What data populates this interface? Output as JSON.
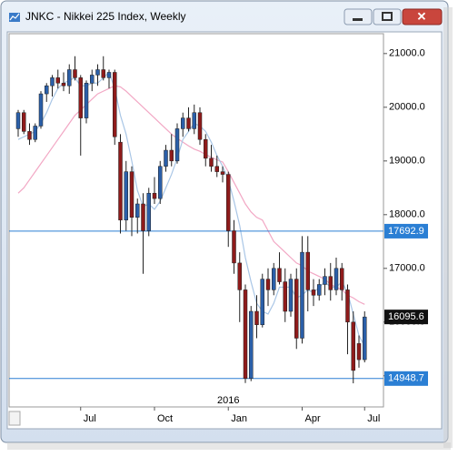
{
  "chart_data": {
    "type": "candlestick",
    "title": "JNKC - Nikkei 225 Index, Weekly",
    "categories": [
      null,
      null,
      null,
      null,
      null,
      null,
      null,
      null,
      null,
      null,
      null,
      "Jul",
      null,
      null,
      null,
      null,
      null,
      null,
      null,
      null,
      null,
      null,
      null,
      null,
      "Oct",
      null,
      null,
      null,
      null,
      null,
      null,
      null,
      null,
      null,
      null,
      null,
      null,
      "Jan",
      null,
      null,
      null,
      null,
      null,
      null,
      null,
      null,
      null,
      null,
      null,
      null,
      "Apr",
      null,
      null,
      null,
      null,
      null,
      null,
      null,
      null,
      null,
      null,
      "Jul"
    ],
    "annotation": "2016",
    "annotation_index": 37,
    "open": [
      19600,
      19900,
      19550,
      19400,
      19650,
      20250,
      20400,
      20550,
      20450,
      20400,
      20700,
      20550,
      19800,
      20450,
      20600,
      20700,
      20550,
      20650,
      19350,
      17900,
      18800,
      17950,
      18200,
      17700,
      18400,
      18300,
      18900,
      19200,
      19000,
      19600,
      19800,
      19600,
      19900,
      19400,
      19050,
      18900,
      18800,
      18750,
      17700,
      17100,
      16600,
      14950,
      16200,
      15950,
      16800,
      16600,
      17000,
      16750,
      16200,
      16800,
      15700,
      17300,
      16600,
      16500,
      16700,
      16850,
      16600,
      17000,
      16600,
      16000,
      15600,
      15300
    ],
    "high": [
      19950,
      19950,
      19700,
      19700,
      20300,
      20450,
      20600,
      20700,
      20650,
      20800,
      20950,
      20600,
      20500,
      20700,
      20800,
      20950,
      20700,
      20700,
      19500,
      19000,
      18900,
      18300,
      18400,
      18500,
      18700,
      19000,
      19300,
      19500,
      19700,
      19900,
      20000,
      20050,
      20000,
      19500,
      19300,
      19100,
      18900,
      18800,
      17900,
      17300,
      16700,
      16300,
      16500,
      16900,
      17000,
      17100,
      17300,
      17000,
      16900,
      17000,
      17600,
      17600,
      16800,
      16800,
      17000,
      17100,
      17200,
      17100,
      16700,
      16200,
      15750,
      16200
    ],
    "low": [
      19450,
      19500,
      19300,
      19350,
      19600,
      20100,
      20200,
      20350,
      20300,
      20250,
      20500,
      19100,
      19700,
      20300,
      20400,
      20500,
      20350,
      19300,
      17650,
      17700,
      17600,
      17650,
      16900,
      17600,
      18200,
      18200,
      18800,
      18900,
      18950,
      19450,
      19550,
      19500,
      19300,
      18900,
      18800,
      18700,
      18600,
      17400,
      16900,
      16000,
      14865,
      14900,
      15700,
      15900,
      16300,
      16500,
      16700,
      16000,
      16100,
      15500,
      15600,
      16200,
      16300,
      16400,
      16500,
      16400,
      16500,
      16400,
      15400,
      14860,
      15150,
      15250
    ],
    "close": [
      19900,
      19550,
      19400,
      19650,
      20250,
      20400,
      20550,
      20450,
      20400,
      20700,
      20550,
      19800,
      20450,
      20600,
      20700,
      20550,
      20650,
      19450,
      17900,
      18800,
      17950,
      18200,
      17700,
      18400,
      18300,
      18900,
      19200,
      19000,
      19600,
      19800,
      19600,
      19900,
      19400,
      19050,
      18900,
      18800,
      18750,
      17700,
      17100,
      16600,
      14950,
      16200,
      15950,
      16800,
      16600,
      17000,
      16750,
      16200,
      16800,
      15700,
      17300,
      16600,
      16500,
      16700,
      16850,
      16600,
      17000,
      16600,
      16000,
      15100,
      15300,
      16095.6
    ],
    "up_color": "#2b5fa8",
    "down_color": "#8e1b1b",
    "overlays": [
      {
        "color": "#f2a7c4",
        "values": [
          18400,
          18500,
          18650,
          18800,
          18950,
          19100,
          19250,
          19400,
          19550,
          19700,
          19850,
          19950,
          20050,
          20150,
          20250,
          20300,
          20350,
          20400,
          20380,
          20300,
          20200,
          20100,
          20000,
          19900,
          19800,
          19700,
          19600,
          19500,
          19420,
          19350,
          19280,
          19220,
          19180,
          19120,
          19070,
          19020,
          18980,
          18800,
          18600,
          18400,
          18200,
          18050,
          17950,
          17900,
          17700,
          17500,
          17400,
          17300,
          17200,
          17100,
          17050,
          16950,
          16900,
          16850,
          16800,
          16700,
          16650,
          16600,
          16500,
          16450,
          16380,
          16330
        ]
      },
      {
        "color": "#a9c6e6",
        "values": [
          19400,
          19450,
          19500,
          19550,
          19700,
          19900,
          20150,
          20350,
          20450,
          20500,
          20550,
          20400,
          20400,
          20450,
          20450,
          20550,
          20650,
          20350,
          19850,
          19500,
          19000,
          18450,
          18150,
          18200,
          18100,
          18250,
          18500,
          18750,
          19050,
          19400,
          19550,
          19700,
          19650,
          19550,
          19350,
          19100,
          18900,
          18650,
          18250,
          17800,
          17200,
          16750,
          16350,
          16200,
          16150,
          16350,
          16650,
          16650,
          16650,
          16450,
          16500,
          16600,
          16550,
          16650,
          16750,
          16650,
          16650,
          16750,
          16550,
          16150,
          15750,
          15550
        ]
      }
    ],
    "hlines": [
      {
        "value": 17692.9,
        "color": "#2b7fd4"
      },
      {
        "value": 14948.7,
        "color": "#2b7fd4"
      }
    ],
    "ylim": [
      14420,
      21370
    ],
    "yticks": [
      {
        "value": 21000,
        "label": "21000.0"
      },
      {
        "value": 20000,
        "label": "20000.0"
      },
      {
        "value": 19000,
        "label": "19000.0"
      },
      {
        "value": 18000,
        "label": "18000.0"
      },
      {
        "value": 17000,
        "label": "17000.0"
      },
      {
        "value": 16000,
        "label": "16000.0"
      },
      {
        "value": 15000,
        "label": "15000.0"
      }
    ]
  }
}
